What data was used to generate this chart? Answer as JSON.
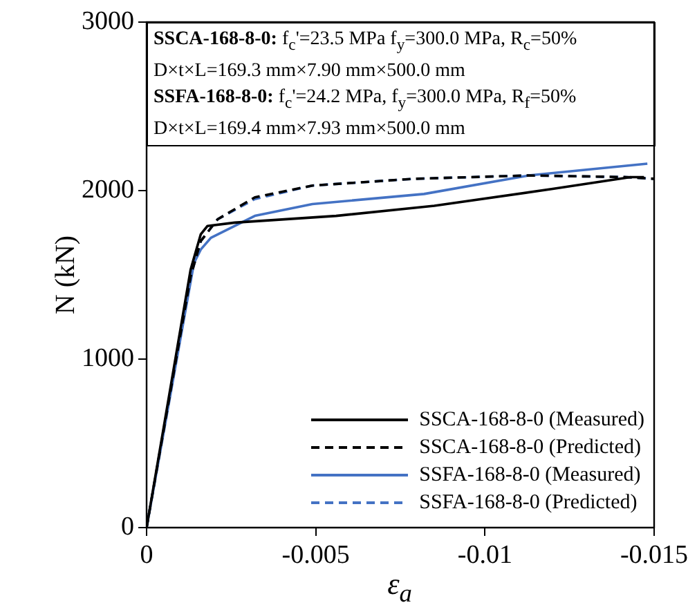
{
  "chart_data": {
    "type": "line",
    "xlabel": "ε$_{a}$",
    "ylabel": "N (kN)",
    "xlim": [
      0,
      -0.015
    ],
    "xticks": [
      0,
      -0.005,
      -0.01,
      -0.015
    ],
    "ylim": [
      0,
      3000
    ],
    "yticks": [
      0,
      1000,
      2000,
      3000
    ],
    "legend": "bottom right",
    "marker": "none",
    "annotations": [
      "SSCA-168-8-0: f$_{c}$'=23.5 MPa  f$_{y}$=300.0 MPa, R$_{c}$=50%",
      "D×t×L=169.3 mm×7.90 mm×500.0 mm",
      "SSFA-168-8-0: f$_{c}$'=24.2 MPa,  f$_{y}$=300.0 MPa, R$_{f}$=50%",
      "D×t×L=169.4 mm×7.93 mm×500.0 mm"
    ],
    "series": [
      {
        "name": "SSCA-168-8-0 (Measured)",
        "color": "#000000",
        "line_style": "solid",
        "x": [
          0,
          -0.0013,
          -0.0014,
          -0.0016,
          -0.0018,
          -0.0026,
          -0.0056,
          -0.0085,
          -0.012,
          -0.0143,
          -0.0147
        ],
        "values": [
          0,
          1530,
          1600,
          1740,
          1790,
          1810,
          1850,
          1910,
          2010,
          2080,
          2080
        ]
      },
      {
        "name": "SSCA-168-8-0 (Predicted)",
        "color": "#000000",
        "line_style": "dashed",
        "x": [
          0,
          -0.0013,
          -0.0016,
          -0.0021,
          -0.0032,
          -0.0049,
          -0.0079,
          -0.0113,
          -0.0142,
          -0.015
        ],
        "values": [
          0,
          1490,
          1700,
          1830,
          1960,
          2030,
          2070,
          2090,
          2080,
          2070
        ]
      },
      {
        "name": "SSFA-168-8-0 (Measured)",
        "color": "#4472c4",
        "line_style": "solid",
        "x": [
          0,
          -0.0014,
          -0.0016,
          -0.0019,
          -0.0032,
          -0.0049,
          -0.0082,
          -0.0113,
          -0.0148
        ],
        "values": [
          0,
          1570,
          1650,
          1720,
          1850,
          1920,
          1980,
          2090,
          2160
        ]
      },
      {
        "name": "SSFA-168-8-0 (Predicted)",
        "color": "#4472c4",
        "line_style": "dashed",
        "x": [
          0,
          -0.0013,
          -0.0016,
          -0.0021,
          -0.0032,
          -0.0049,
          -0.0079,
          -0.0113,
          -0.0142,
          -0.015
        ],
        "values": [
          0,
          1490,
          1700,
          1830,
          1950,
          2030,
          2070,
          2090,
          2080,
          2070
        ]
      }
    ]
  }
}
